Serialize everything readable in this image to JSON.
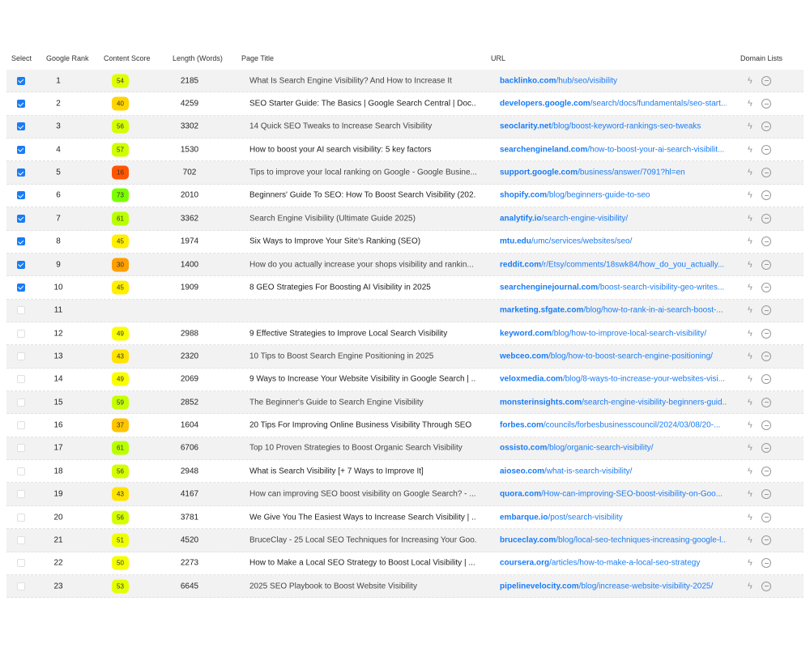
{
  "headers": {
    "select": "Select",
    "rank": "Google Rank",
    "score": "Content Score",
    "length": "Length (Words)",
    "title": "Page Title",
    "url": "URL",
    "domain_lists": "Domain Lists"
  },
  "accent_color": "#1a7cf5",
  "row_icons": [
    "lightning-icon",
    "minus-circle-icon"
  ],
  "rows": [
    {
      "selected": true,
      "rank": "1",
      "score": "54",
      "length": "2185",
      "title": "What Is Search Engine Visibility? And How to Increase It",
      "domain": "backlinko.com",
      "path": "/hub/seo/visibility"
    },
    {
      "selected": true,
      "rank": "2",
      "score": "40",
      "length": "4259",
      "title": "SEO Starter Guide: The Basics | Google Search Central  |  Doc...",
      "domain": "developers.google.com",
      "path": "/search/docs/fundamentals/seo-start..."
    },
    {
      "selected": true,
      "rank": "3",
      "score": "56",
      "length": "3302",
      "title": "14 Quick SEO Tweaks to Increase Search Visibility",
      "domain": "seoclarity.net",
      "path": "/blog/boost-keyword-rankings-seo-tweaks"
    },
    {
      "selected": true,
      "rank": "4",
      "score": "57",
      "length": "1530",
      "title": "How to boost your AI search visibility: 5 key factors",
      "domain": "searchengineland.com",
      "path": "/how-to-boost-your-ai-search-visibilit..."
    },
    {
      "selected": true,
      "rank": "5",
      "score": "16",
      "length": "702",
      "title": "Tips to improve your local ranking on Google - Google Busine...",
      "domain": "support.google.com",
      "path": "/business/answer/7091?hl=en"
    },
    {
      "selected": true,
      "rank": "6",
      "score": "73",
      "length": "2010",
      "title": "Beginners' Guide To SEO: How To Boost Search Visibility (202...",
      "domain": "shopify.com",
      "path": "/blog/beginners-guide-to-seo"
    },
    {
      "selected": true,
      "rank": "7",
      "score": "61",
      "length": "3362",
      "title": "Search Engine Visibility (Ultimate Guide 2025)",
      "domain": "analytify.io",
      "path": "/search-engine-visibility/"
    },
    {
      "selected": true,
      "rank": "8",
      "score": "45",
      "length": "1974",
      "title": "Six Ways to Improve Your Site's Ranking (SEO)",
      "domain": "mtu.edu",
      "path": "/umc/services/websites/seo/"
    },
    {
      "selected": true,
      "rank": "9",
      "score": "30",
      "length": "1400",
      "title": "How do you actually increase your shops visibility and rankin...",
      "domain": "reddit.com",
      "path": "/r/Etsy/comments/18swk84/how_do_you_actually..."
    },
    {
      "selected": true,
      "rank": "10",
      "score": "45",
      "length": "1909",
      "title": "8 GEO Strategies For Boosting AI Visibility in 2025",
      "domain": "searchenginejournal.com",
      "path": "/boost-search-visibility-geo-writes..."
    },
    {
      "selected": false,
      "rank": "11",
      "score": "",
      "length": "",
      "title": "",
      "domain": "marketing.sfgate.com",
      "path": "/blog/how-to-rank-in-ai-search-boost-..."
    },
    {
      "selected": false,
      "rank": "12",
      "score": "49",
      "length": "2988",
      "title": "9 Effective Strategies to Improve Local Search Visibility",
      "domain": "keyword.com",
      "path": "/blog/how-to-improve-local-search-visibility/"
    },
    {
      "selected": false,
      "rank": "13",
      "score": "43",
      "length": "2320",
      "title": "10 Tips to Boost Search Engine Positioning in 2025",
      "domain": "webceo.com",
      "path": "/blog/how-to-boost-search-engine-positioning/"
    },
    {
      "selected": false,
      "rank": "14",
      "score": "49",
      "length": "2069",
      "title": "9 Ways to Increase Your Website Visibility in Google Search | ...",
      "domain": "veloxmedia.com",
      "path": "/blog/8-ways-to-increase-your-websites-visi..."
    },
    {
      "selected": false,
      "rank": "15",
      "score": "59",
      "length": "2852",
      "title": "The Beginner's Guide to Search Engine Visibility",
      "domain": "monsterinsights.com",
      "path": "/search-engine-visibility-beginners-guid..."
    },
    {
      "selected": false,
      "rank": "16",
      "score": "37",
      "length": "1604",
      "title": "20 Tips For Improving Online Business Visibility Through SEO",
      "domain": "forbes.com",
      "path": "/councils/forbesbusinesscouncil/2024/03/08/20-..."
    },
    {
      "selected": false,
      "rank": "17",
      "score": "61",
      "length": "6706",
      "title": "Top 10 Proven Strategies to Boost Organic Search Visibility",
      "domain": "ossisto.com",
      "path": "/blog/organic-search-visibility/"
    },
    {
      "selected": false,
      "rank": "18",
      "score": "56",
      "length": "2948",
      "title": "What is Search Visibility [+ 7 Ways to Improve It]",
      "domain": "aioseo.com",
      "path": "/what-is-search-visibility/"
    },
    {
      "selected": false,
      "rank": "19",
      "score": "43",
      "length": "4167",
      "title": "How can improving SEO boost visibility on Google Search? - ...",
      "domain": "quora.com",
      "path": "/How-can-improving-SEO-boost-visibility-on-Goo..."
    },
    {
      "selected": false,
      "rank": "20",
      "score": "56",
      "length": "3781",
      "title": "We Give You The Easiest Ways to Increase Search Visibility | ...",
      "domain": "embarque.io",
      "path": "/post/search-visibility"
    },
    {
      "selected": false,
      "rank": "21",
      "score": "51",
      "length": "4520",
      "title": "BruceClay - 25 Local SEO Techniques for Increasing Your Goo...",
      "domain": "bruceclay.com",
      "path": "/blog/local-seo-techniques-increasing-google-l..."
    },
    {
      "selected": false,
      "rank": "22",
      "score": "50",
      "length": "2273",
      "title": "How to Make a Local SEO Strategy to Boost Local Visibility | ...",
      "domain": "coursera.org",
      "path": "/articles/how-to-make-a-local-seo-strategy"
    },
    {
      "selected": false,
      "rank": "23",
      "score": "53",
      "length": "6645",
      "title": "2025 SEO Playbook to Boost Website Visibility",
      "domain": "pipelinevelocity.com",
      "path": "/blog/increase-website-visibility-2025/"
    }
  ]
}
